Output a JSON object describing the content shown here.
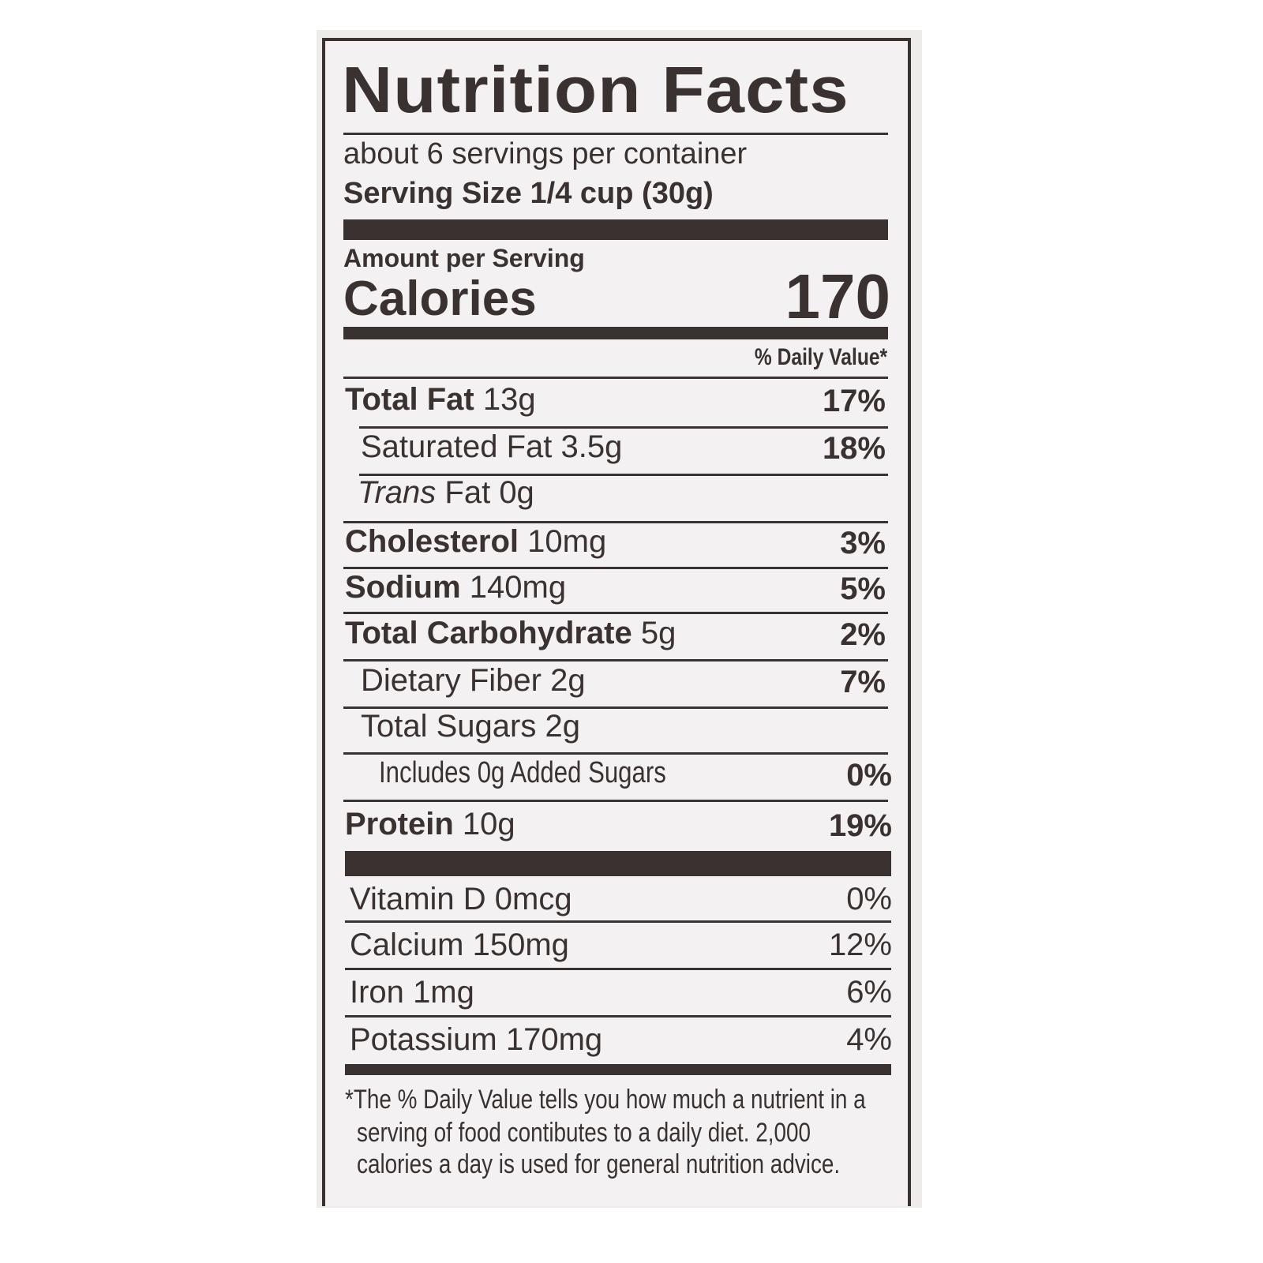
{
  "label": {
    "title": "Nutrition Facts",
    "servings_per_container": "about 6 servings per container",
    "serving_size": "Serving Size 1/4 cup (30g)",
    "amount_per_serving": "Amount per Serving",
    "calories_label": "Calories",
    "calories_value": "170",
    "daily_value_header": "% Daily Value*",
    "nutrients": [
      {
        "name": "Total Fat",
        "amount": "13g",
        "dv": "17%",
        "bold": true
      },
      {
        "name": "Saturated Fat",
        "amount": "3.5g",
        "dv": "18%",
        "bold": false
      },
      {
        "name": "Trans",
        "name_suffix": " Fat",
        "amount": "0g",
        "dv": "",
        "bold": false
      },
      {
        "name": "Cholesterol",
        "amount": "10mg",
        "dv": "3%",
        "bold": true
      },
      {
        "name": "Sodium",
        "amount": "140mg",
        "dv": "5%",
        "bold": true
      },
      {
        "name": "Total Carbohydrate",
        "amount": "5g",
        "dv": "2%",
        "bold": true
      },
      {
        "name": "Dietary Fiber",
        "amount": "2g",
        "dv": "7%",
        "bold": false
      },
      {
        "name": "Total Sugars",
        "amount": "2g",
        "dv": "",
        "bold": false
      },
      {
        "name": "Includes 0g Added Sugars",
        "amount": "",
        "dv": "0%",
        "bold": false
      },
      {
        "name": "Protein",
        "amount": "10g",
        "dv": "19%",
        "bold": true
      }
    ],
    "vitamins": [
      {
        "name": "Vitamin D",
        "amount": "0mcg",
        "dv": "0%"
      },
      {
        "name": "Calcium",
        "amount": "150mg",
        "dv": "12%"
      },
      {
        "name": "Iron",
        "amount": "1mg",
        "dv": "6%"
      },
      {
        "name": "Potassium",
        "amount": "170mg",
        "dv": "4%"
      }
    ],
    "footnote": [
      "*The % Daily Value tells you how much a nutrient in a",
      "serving of food contibutes to a daily diet. 2,000",
      "calories a day is used for general nutrition advice."
    ]
  }
}
